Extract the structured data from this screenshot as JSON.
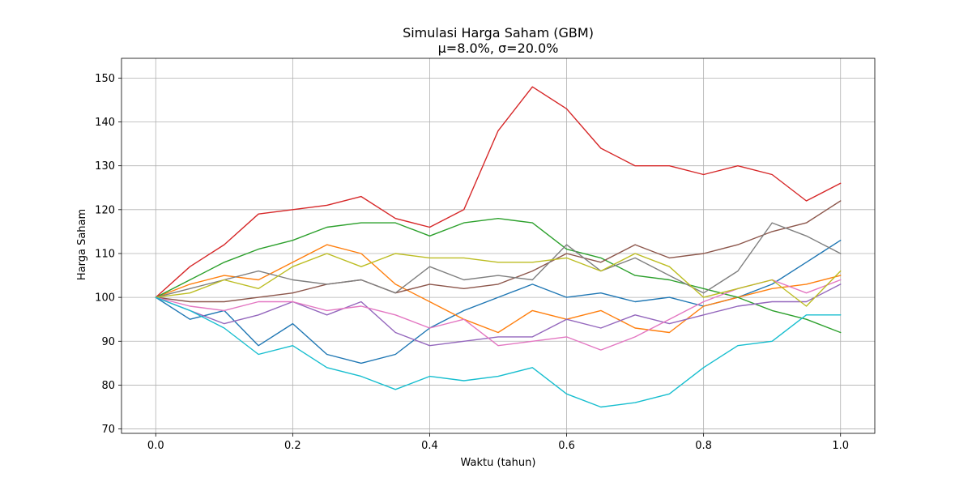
{
  "chart_data": {
    "type": "line",
    "title": "Simulasi Harga Saham (GBM)",
    "subtitle": "μ=8.0%, σ=20.0%",
    "xlabel": "Waktu (tahun)",
    "ylabel": "Harga Saham",
    "xlim": [
      -0.05,
      1.05
    ],
    "ylim": [
      69,
      154.5
    ],
    "xticks": [
      0.0,
      0.2,
      0.4,
      0.6,
      0.8,
      1.0
    ],
    "xtick_labels": [
      "0.0",
      "0.2",
      "0.4",
      "0.6",
      "0.8",
      "1.0"
    ],
    "yticks": [
      70,
      80,
      90,
      100,
      110,
      120,
      130,
      140,
      150
    ],
    "ytick_labels": [
      "70",
      "80",
      "90",
      "100",
      "110",
      "120",
      "130",
      "140",
      "150"
    ],
    "grid": true,
    "x": [
      0.0,
      0.05,
      0.1,
      0.15,
      0.2,
      0.25,
      0.3,
      0.35,
      0.4,
      0.45,
      0.5,
      0.55,
      0.6,
      0.65,
      0.7,
      0.75,
      0.8,
      0.85,
      0.9,
      0.95,
      1.0
    ],
    "series": [
      {
        "color": "#1f77b4",
        "values": [
          100,
          95,
          97,
          89,
          94,
          87,
          85,
          87,
          93,
          97,
          100,
          103,
          100,
          101,
          99,
          100,
          98,
          100,
          103,
          108,
          113
        ]
      },
      {
        "color": "#ff7f0e",
        "values": [
          100,
          103,
          105,
          104,
          108,
          112,
          110,
          103,
          99,
          95,
          92,
          97,
          95,
          97,
          93,
          92,
          98,
          100,
          102,
          103,
          105
        ]
      },
      {
        "color": "#2ca02c",
        "values": [
          100,
          104,
          108,
          111,
          113,
          116,
          117,
          117,
          114,
          117,
          118,
          117,
          111,
          109,
          105,
          104,
          102,
          100,
          97,
          95,
          92
        ]
      },
      {
        "color": "#d62728",
        "values": [
          100,
          107,
          112,
          119,
          120,
          121,
          123,
          118,
          116,
          120,
          138,
          148,
          143,
          134,
          130,
          130,
          128,
          130,
          128,
          122,
          126
        ]
      },
      {
        "color": "#9467bd",
        "values": [
          100,
          97,
          94,
          96,
          99,
          96,
          99,
          92,
          89,
          90,
          91,
          91,
          95,
          93,
          96,
          94,
          96,
          98,
          99,
          99,
          103
        ]
      },
      {
        "color": "#8c564b",
        "values": [
          100,
          99,
          99,
          100,
          101,
          103,
          104,
          101,
          103,
          102,
          103,
          106,
          110,
          108,
          112,
          109,
          110,
          112,
          115,
          117,
          122
        ]
      },
      {
        "color": "#e377c2",
        "values": [
          100,
          98,
          97,
          99,
          99,
          97,
          98,
          96,
          93,
          95,
          89,
          90,
          91,
          88,
          91,
          95,
          99,
          102,
          104,
          101,
          104
        ]
      },
      {
        "color": "#7f7f7f",
        "values": [
          100,
          102,
          104,
          106,
          104,
          103,
          104,
          101,
          107,
          104,
          105,
          104,
          112,
          106,
          109,
          105,
          101,
          106,
          117,
          114,
          110
        ]
      },
      {
        "color": "#bcbd22",
        "values": [
          100,
          101,
          104,
          102,
          107,
          110,
          107,
          110,
          109,
          109,
          108,
          108,
          109,
          106,
          110,
          107,
          100,
          102,
          104,
          98,
          106
        ]
      },
      {
        "color": "#17becf",
        "values": [
          100,
          97,
          93,
          87,
          89,
          84,
          82,
          79,
          82,
          81,
          82,
          84,
          78,
          75,
          76,
          78,
          84,
          89,
          90,
          96,
          96
        ]
      }
    ]
  }
}
